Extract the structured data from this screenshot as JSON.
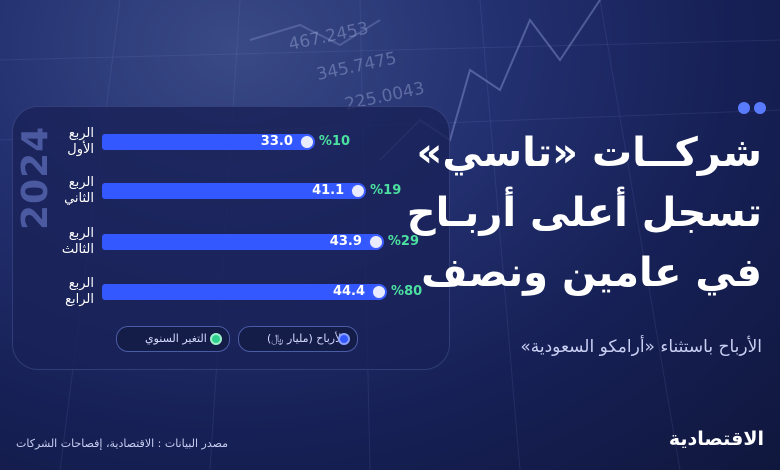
{
  "headline": {
    "line1": "شركــات «تاسي»",
    "line2": "تسجل أعلى أربـاح",
    "line3": "في عامين ونصف"
  },
  "subtitle": "الأرباح باستثناء «أرامكو السعودية»",
  "year_label": "2024",
  "legend": {
    "profits": "الأرباح (مليار ﷼)",
    "annual_change": "التغير السنوي"
  },
  "source": "مصدر البيانات : الاقتصادية، إفصاحات الشركات",
  "brand": "الاقتصادية",
  "background_numbers": [
    "467.2453",
    "345.7475",
    "225.0043"
  ],
  "colors": {
    "bar": "#3358ff",
    "change_text": "#4be0a0",
    "background": "#1a2459"
  },
  "chart_data": {
    "type": "bar",
    "orientation": "horizontal",
    "categories": [
      {
        "line1": "الربع",
        "line2": "الأول"
      },
      {
        "line1": "الربع",
        "line2": "الثاني"
      },
      {
        "line1": "الربع",
        "line2": "الثالث"
      },
      {
        "line1": "الربع",
        "line2": "الرابع"
      }
    ],
    "series": [
      {
        "name": "الأرباح (مليار ﷼)",
        "values": [
          33.0,
          41.1,
          43.9,
          44.4
        ],
        "labels": [
          "33.0",
          "41.1",
          "43.9",
          "44.4"
        ]
      },
      {
        "name": "التغير السنوي",
        "values": [
          10,
          19,
          29,
          80
        ],
        "labels": [
          "%10",
          "%19",
          "%29",
          "%80"
        ]
      }
    ],
    "legend_position": "bottom"
  }
}
